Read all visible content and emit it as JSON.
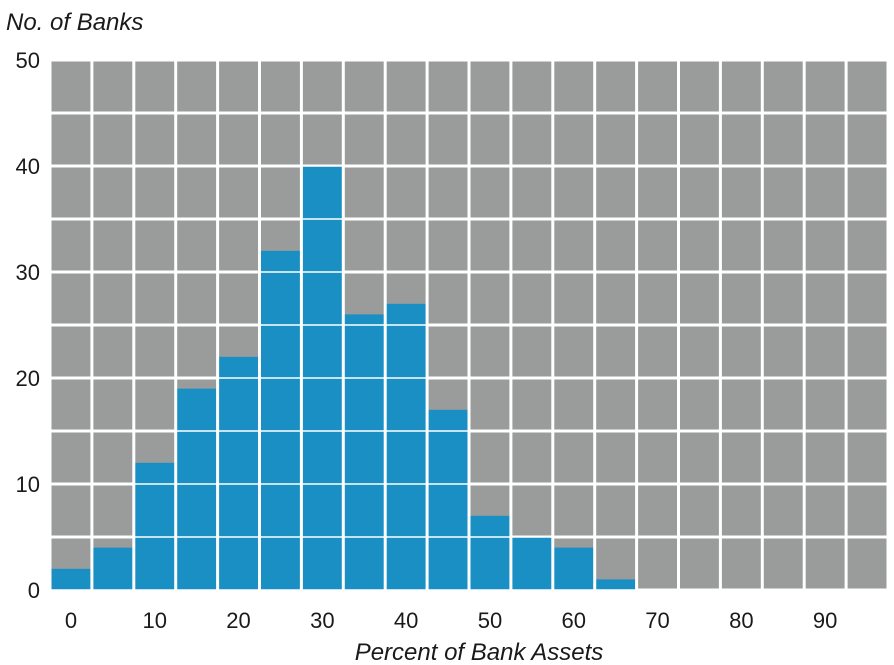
{
  "chart_data": {
    "type": "bar",
    "title": "",
    "ylabel": "No. of Banks",
    "xlabel": "Percent of Bank Assets",
    "ylim": [
      0,
      50
    ],
    "xlim": [
      -2.5,
      97.5
    ],
    "yticks": [
      0,
      10,
      20,
      30,
      40,
      50
    ],
    "xticks": [
      0,
      10,
      20,
      30,
      40,
      50,
      60,
      70,
      80,
      90
    ],
    "bin_width": 5,
    "x": [
      0,
      5,
      10,
      15,
      20,
      25,
      30,
      35,
      40,
      45,
      50,
      55,
      60,
      65
    ],
    "values": [
      2,
      4,
      12,
      19,
      22,
      32,
      40,
      26,
      27,
      17,
      7,
      5,
      4,
      1
    ],
    "grid": true,
    "colors": {
      "bar": "#1a8fc4",
      "plot_background": "#9a9c9b",
      "grid": "#ffffff"
    }
  }
}
